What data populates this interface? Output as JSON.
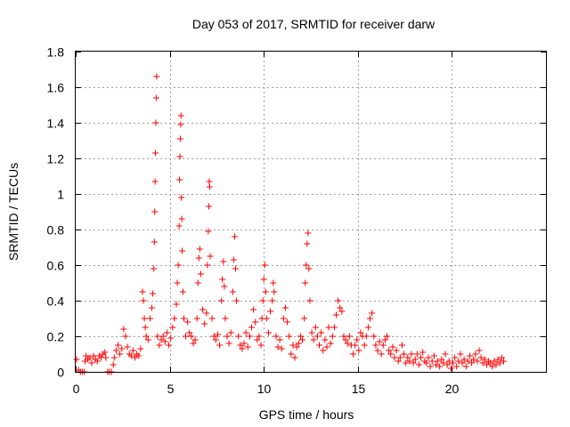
{
  "chart_data": {
    "type": "scatter",
    "title": "Day 053 of 2017, SRMTID for receiver darw",
    "xlabel": "GPS time / hours",
    "ylabel": "SRMTID / TECUs",
    "xlim": [
      0,
      25
    ],
    "ylim": [
      0,
      1.8
    ],
    "xticks": [
      0,
      5,
      10,
      15,
      20
    ],
    "xtick_labels": [
      "0",
      "5",
      "10",
      "15",
      "20"
    ],
    "yticks": [
      0,
      0.2,
      0.4,
      0.6,
      0.8,
      1.0,
      1.2,
      1.4,
      1.6,
      1.8
    ],
    "ytick_labels": [
      "0",
      "0.2",
      "0.4",
      "0.6",
      "0.8",
      "1",
      "1.2",
      "1.4",
      "1.6",
      "1.8"
    ],
    "grid": true,
    "marker": "+",
    "color": "#ff0000",
    "series": [
      {
        "name": "SRMTID",
        "points": [
          [
            0.05,
            0.07
          ],
          [
            0.15,
            0.01
          ],
          [
            0.25,
            0.0
          ],
          [
            0.35,
            0.0
          ],
          [
            0.45,
            0.0
          ],
          [
            0.5,
            0.06
          ],
          [
            0.55,
            0.09
          ],
          [
            0.65,
            0.07
          ],
          [
            0.75,
            0.08
          ],
          [
            0.85,
            0.05
          ],
          [
            0.95,
            0.09
          ],
          [
            1.05,
            0.07
          ],
          [
            1.15,
            0.06
          ],
          [
            1.25,
            0.09
          ],
          [
            1.35,
            0.08
          ],
          [
            1.45,
            0.1
          ],
          [
            1.55,
            0.11
          ],
          [
            1.6,
            0.08
          ],
          [
            1.7,
            0.0
          ],
          [
            1.8,
            0.0
          ],
          [
            1.9,
            0.0
          ],
          [
            2.0,
            0.04
          ],
          [
            2.05,
            0.08
          ],
          [
            2.15,
            0.12
          ],
          [
            2.25,
            0.15
          ],
          [
            2.35,
            0.1
          ],
          [
            2.45,
            0.13
          ],
          [
            2.55,
            0.24
          ],
          [
            2.65,
            0.2
          ],
          [
            2.75,
            0.14
          ],
          [
            2.85,
            0.1
          ],
          [
            2.95,
            0.09
          ],
          [
            3.05,
            0.12
          ],
          [
            3.15,
            0.08
          ],
          [
            3.25,
            0.1
          ],
          [
            3.35,
            0.09
          ],
          [
            3.45,
            0.13
          ],
          [
            3.55,
            0.45
          ],
          [
            3.6,
            0.4
          ],
          [
            3.65,
            0.3
          ],
          [
            3.7,
            0.25
          ],
          [
            3.75,
            0.2
          ],
          [
            3.85,
            0.18
          ],
          [
            3.95,
            0.3
          ],
          [
            4.05,
            0.36
          ],
          [
            4.1,
            0.44
          ],
          [
            4.15,
            0.58
          ],
          [
            4.18,
            0.73
          ],
          [
            4.2,
            0.9
          ],
          [
            4.22,
            1.07
          ],
          [
            4.24,
            1.23
          ],
          [
            4.26,
            1.4
          ],
          [
            4.28,
            1.54
          ],
          [
            4.3,
            1.66
          ],
          [
            4.35,
            0.2
          ],
          [
            4.45,
            0.15
          ],
          [
            4.55,
            0.18
          ],
          [
            4.65,
            0.2
          ],
          [
            4.75,
            0.17
          ],
          [
            4.85,
            0.22
          ],
          [
            4.95,
            0.15
          ],
          [
            5.05,
            0.19
          ],
          [
            5.15,
            0.25
          ],
          [
            5.25,
            0.3
          ],
          [
            5.35,
            0.38
          ],
          [
            5.4,
            0.5
          ],
          [
            5.45,
            0.6
          ],
          [
            5.5,
            0.82
          ],
          [
            5.52,
            1.08
          ],
          [
            5.54,
            1.21
          ],
          [
            5.56,
            1.31
          ],
          [
            5.58,
            1.39
          ],
          [
            5.6,
            1.44
          ],
          [
            5.62,
            0.98
          ],
          [
            5.64,
            0.86
          ],
          [
            5.66,
            0.68
          ],
          [
            5.7,
            0.45
          ],
          [
            5.75,
            0.3
          ],
          [
            5.85,
            0.2
          ],
          [
            5.95,
            0.28
          ],
          [
            6.05,
            0.22
          ],
          [
            6.15,
            0.2
          ],
          [
            6.25,
            0.16
          ],
          [
            6.35,
            0.18
          ],
          [
            6.45,
            0.3
          ],
          [
            6.5,
            0.5
          ],
          [
            6.55,
            0.64
          ],
          [
            6.6,
            0.69
          ],
          [
            6.65,
            0.55
          ],
          [
            6.75,
            0.35
          ],
          [
            6.85,
            0.27
          ],
          [
            6.95,
            0.33
          ],
          [
            7.0,
            0.6
          ],
          [
            7.05,
            0.79
          ],
          [
            7.08,
            0.93
          ],
          [
            7.1,
            1.07
          ],
          [
            7.12,
            1.04
          ],
          [
            7.15,
            0.65
          ],
          [
            7.25,
            0.3
          ],
          [
            7.35,
            0.2
          ],
          [
            7.45,
            0.18
          ],
          [
            7.55,
            0.21
          ],
          [
            7.65,
            0.15
          ],
          [
            7.75,
            0.4
          ],
          [
            7.8,
            0.52
          ],
          [
            7.85,
            0.62
          ],
          [
            7.9,
            0.48
          ],
          [
            7.95,
            0.3
          ],
          [
            8.05,
            0.2
          ],
          [
            8.15,
            0.16
          ],
          [
            8.25,
            0.22
          ],
          [
            8.35,
            0.45
          ],
          [
            8.4,
            0.63
          ],
          [
            8.45,
            0.76
          ],
          [
            8.5,
            0.58
          ],
          [
            8.55,
            0.4
          ],
          [
            8.65,
            0.2
          ],
          [
            8.75,
            0.15
          ],
          [
            8.85,
            0.13
          ],
          [
            8.95,
            0.16
          ],
          [
            9.05,
            0.22
          ],
          [
            9.15,
            0.14
          ],
          [
            9.25,
            0.2
          ],
          [
            9.35,
            0.25
          ],
          [
            9.45,
            0.35
          ],
          [
            9.55,
            0.28
          ],
          [
            9.65,
            0.18
          ],
          [
            9.75,
            0.2
          ],
          [
            9.85,
            0.15
          ],
          [
            9.9,
            0.3
          ],
          [
            9.95,
            0.4
          ],
          [
            10.0,
            0.52
          ],
          [
            10.05,
            0.6
          ],
          [
            10.1,
            0.45
          ],
          [
            10.15,
            0.3
          ],
          [
            10.25,
            0.22
          ],
          [
            10.35,
            0.34
          ],
          [
            10.45,
            0.4
          ],
          [
            10.5,
            0.5
          ],
          [
            10.55,
            0.45
          ],
          [
            10.65,
            0.2
          ],
          [
            10.75,
            0.14
          ],
          [
            10.85,
            0.18
          ],
          [
            10.95,
            0.13
          ],
          [
            11.05,
            0.3
          ],
          [
            11.15,
            0.36
          ],
          [
            11.25,
            0.28
          ],
          [
            11.35,
            0.2
          ],
          [
            11.45,
            0.1
          ],
          [
            11.55,
            0.15
          ],
          [
            11.65,
            0.08
          ],
          [
            11.75,
            0.14
          ],
          [
            11.85,
            0.16
          ],
          [
            11.95,
            0.2
          ],
          [
            12.05,
            0.18
          ],
          [
            12.15,
            0.3
          ],
          [
            12.2,
            0.5
          ],
          [
            12.25,
            0.6
          ],
          [
            12.3,
            0.72
          ],
          [
            12.35,
            0.78
          ],
          [
            12.4,
            0.58
          ],
          [
            12.45,
            0.4
          ],
          [
            12.55,
            0.22
          ],
          [
            12.65,
            0.18
          ],
          [
            12.75,
            0.25
          ],
          [
            12.85,
            0.2
          ],
          [
            12.95,
            0.15
          ],
          [
            13.05,
            0.22
          ],
          [
            13.15,
            0.12
          ],
          [
            13.25,
            0.18
          ],
          [
            13.35,
            0.14
          ],
          [
            13.45,
            0.25
          ],
          [
            13.55,
            0.16
          ],
          [
            13.65,
            0.2
          ],
          [
            13.75,
            0.25
          ],
          [
            13.85,
            0.32
          ],
          [
            13.95,
            0.4
          ],
          [
            14.05,
            0.36
          ],
          [
            14.15,
            0.34
          ],
          [
            14.25,
            0.2
          ],
          [
            14.35,
            0.18
          ],
          [
            14.45,
            0.16
          ],
          [
            14.55,
            0.2
          ],
          [
            14.65,
            0.15
          ],
          [
            14.75,
            0.1
          ],
          [
            14.85,
            0.15
          ],
          [
            14.95,
            0.18
          ],
          [
            15.05,
            0.12
          ],
          [
            15.15,
            0.22
          ],
          [
            15.25,
            0.2
          ],
          [
            15.35,
            0.15
          ],
          [
            15.45,
            0.2
          ],
          [
            15.55,
            0.25
          ],
          [
            15.65,
            0.3
          ],
          [
            15.75,
            0.33
          ],
          [
            15.85,
            0.2
          ],
          [
            15.95,
            0.15
          ],
          [
            16.05,
            0.12
          ],
          [
            16.15,
            0.17
          ],
          [
            16.25,
            0.1
          ],
          [
            16.35,
            0.15
          ],
          [
            16.45,
            0.18
          ],
          [
            16.55,
            0.2
          ],
          [
            16.65,
            0.12
          ],
          [
            16.75,
            0.1
          ],
          [
            16.85,
            0.14
          ],
          [
            16.95,
            0.08
          ],
          [
            17.05,
            0.12
          ],
          [
            17.15,
            0.06
          ],
          [
            17.25,
            0.08
          ],
          [
            17.35,
            0.15
          ],
          [
            17.45,
            0.1
          ],
          [
            17.55,
            0.05
          ],
          [
            17.65,
            0.08
          ],
          [
            17.75,
            0.06
          ],
          [
            17.85,
            0.1
          ],
          [
            17.95,
            0.05
          ],
          [
            18.05,
            0.07
          ],
          [
            18.15,
            0.1
          ],
          [
            18.25,
            0.04
          ],
          [
            18.35,
            0.08
          ],
          [
            18.45,
            0.11
          ],
          [
            18.55,
            0.06
          ],
          [
            18.65,
            0.05
          ],
          [
            18.75,
            0.08
          ],
          [
            18.85,
            0.03
          ],
          [
            18.95,
            0.06
          ],
          [
            19.05,
            0.09
          ],
          [
            19.15,
            0.04
          ],
          [
            19.25,
            0.06
          ],
          [
            19.35,
            0.03
          ],
          [
            19.45,
            0.07
          ],
          [
            19.55,
            0.05
          ],
          [
            19.65,
            0.1
          ],
          [
            19.75,
            0.04
          ],
          [
            19.85,
            0.06
          ],
          [
            19.95,
            0.02
          ],
          [
            20.05,
            0.05
          ],
          [
            20.15,
            0.08
          ],
          [
            20.25,
            0.03
          ],
          [
            20.35,
            0.06
          ],
          [
            20.45,
            0.1
          ],
          [
            20.55,
            0.05
          ],
          [
            20.65,
            0.07
          ],
          [
            20.75,
            0.03
          ],
          [
            20.85,
            0.06
          ],
          [
            20.95,
            0.09
          ],
          [
            21.05,
            0.05
          ],
          [
            21.15,
            0.07
          ],
          [
            21.25,
            0.1
          ],
          [
            21.35,
            0.06
          ],
          [
            21.45,
            0.12
          ],
          [
            21.55,
            0.08
          ],
          [
            21.65,
            0.05
          ],
          [
            21.75,
            0.07
          ],
          [
            21.85,
            0.04
          ],
          [
            21.95,
            0.06
          ],
          [
            22.05,
            0.05
          ],
          [
            22.15,
            0.03
          ],
          [
            22.25,
            0.06
          ],
          [
            22.35,
            0.04
          ],
          [
            22.45,
            0.07
          ],
          [
            22.55,
            0.05
          ],
          [
            22.65,
            0.08
          ],
          [
            22.75,
            0.06
          ]
        ]
      }
    ]
  }
}
